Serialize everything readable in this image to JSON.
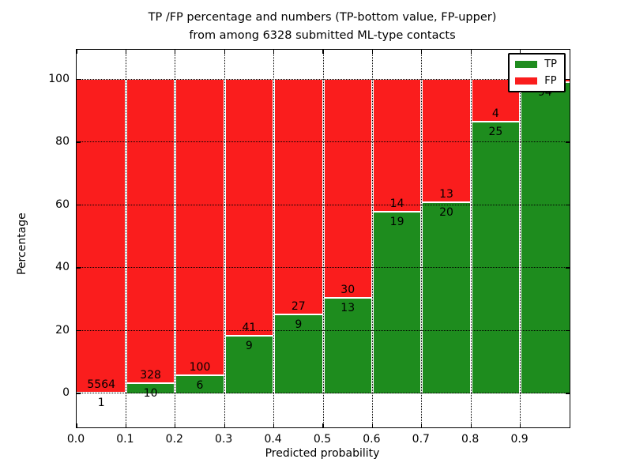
{
  "title": {
    "line1": "TP /FP percentage and numbers (TP-bottom value, FP-upper)",
    "line2": "from among 6328 submitted ML-type contacts"
  },
  "axes": {
    "ylabel": "Percentage",
    "xlabel": "Predicted probability",
    "ytick_labels": [
      "0",
      "20",
      "40",
      "60",
      "80",
      "100"
    ],
    "ytick_values": [
      0,
      20,
      40,
      60,
      80,
      100
    ],
    "xtick_labels": [
      "0.0",
      "0.1",
      "0.2",
      "0.3",
      "0.4",
      "0.5",
      "0.6",
      "0.7",
      "0.8",
      "0.9"
    ],
    "xlim": [
      0.0,
      1.0
    ],
    "grid": "dotted"
  },
  "legend": {
    "position": "upper right",
    "items": [
      {
        "label": "TP",
        "color": "#1e8c1e"
      },
      {
        "label": "FP",
        "color": "#fa1d1d"
      }
    ]
  },
  "colors": {
    "tp": "#1e8c1e",
    "fp": "#fa1d1d",
    "background": "#ffffff",
    "text": "#000000"
  },
  "chart_data": {
    "type": "bar",
    "stacked": true,
    "normalized_to_100_percent": true,
    "title": "TP /FP percentage and numbers (TP-bottom value, FP-upper) from among 6328 submitted ML-type contacts",
    "xlabel": "Predicted probability",
    "ylabel": "Percentage",
    "total_contacts": 6328,
    "categories": [
      "0.0-0.1",
      "0.1-0.2",
      "0.2-0.3",
      "0.3-0.4",
      "0.4-0.5",
      "0.5-0.6",
      "0.6-0.7",
      "0.7-0.8",
      "0.8-0.9",
      "0.9-1.0"
    ],
    "series": [
      {
        "name": "TP",
        "color": "#1e8c1e",
        "counts": [
          1,
          10,
          6,
          9,
          9,
          13,
          19,
          20,
          25,
          94
        ]
      },
      {
        "name": "FP",
        "color": "#fa1d1d",
        "counts": [
          5564,
          328,
          100,
          41,
          27,
          30,
          14,
          13,
          4,
          1
        ]
      }
    ],
    "tp_percent_of_bin": [
      0.02,
      2.96,
      5.66,
      18.0,
      25.0,
      30.23,
      57.58,
      60.61,
      86.21,
      98.95
    ],
    "tp_labels": [
      "1",
      "10",
      "6",
      "9",
      "9",
      "13",
      "19",
      "20",
      "25",
      "94"
    ],
    "fp_labels": [
      "5564",
      "328",
      "100",
      "41",
      "27",
      "30",
      "14",
      "13",
      "4",
      ""
    ]
  }
}
